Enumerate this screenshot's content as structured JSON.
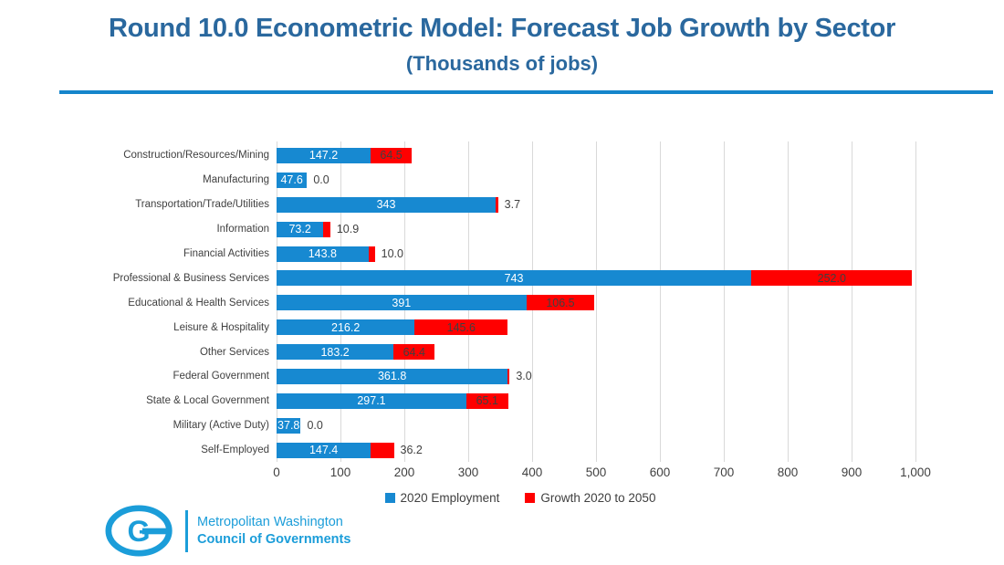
{
  "header": {
    "title": "Round 10.0 Econometric Model: Forecast Job Growth by Sector",
    "subtitle": "(Thousands of jobs)"
  },
  "colors": {
    "title_blue": "#2A689E",
    "divider_blue": "#1585CB",
    "bar_blue": "#1789D1",
    "bar_red": "#FF0000",
    "text_dark": "#404040",
    "gridline_gray": "#D9D9D9",
    "logo_blue": "#1B9DD9"
  },
  "chart_data": {
    "type": "bar",
    "orientation": "horizontal",
    "stacked": true,
    "title": "Round 10.0 Econometric Model: Forecast Job Growth by Sector",
    "subtitle": "(Thousands of jobs)",
    "xlabel": "",
    "ylabel": "",
    "xlim": [
      0,
      1000
    ],
    "x_ticks": [
      "0",
      "100",
      "200",
      "300",
      "400",
      "500",
      "600",
      "700",
      "800",
      "900",
      "1,000"
    ],
    "grid": "vertical",
    "legend_position": "bottom",
    "categories": [
      "Construction/Resources/Mining",
      "Manufacturing",
      "Transportation/Trade/Utilities",
      "Information",
      "Financial Activities",
      "Professional & Business Services",
      "Educational & Health Services",
      "Leisure & Hospitality",
      "Other Services",
      "Federal Government",
      "State & Local Government",
      "Military (Active Duty)",
      "Self-Employed"
    ],
    "series": [
      {
        "name": "2020 Employment",
        "values": [
          147.2,
          47.6,
          343,
          73.2,
          143.8,
          743,
          391,
          216.2,
          183.2,
          361.8,
          297.1,
          37.8,
          147.4
        ]
      },
      {
        "name": "Growth 2020 to 2050",
        "values": [
          64.5,
          0.0,
          3.7,
          10.9,
          10.0,
          252.0,
          106.5,
          145.6,
          64.4,
          3.0,
          65.1,
          0.0,
          36.2
        ]
      }
    ],
    "rows": [
      {
        "label": "Construction/Resources/Mining",
        "employment": 147.2,
        "employment_label": "147.2",
        "growth": 64.5,
        "growth_label": "64.5",
        "growth_label_position": "inside"
      },
      {
        "label": "Manufacturing",
        "employment": 47.6,
        "employment_label": "47.6",
        "growth": 0.0,
        "growth_label": "0.0",
        "growth_label_position": "outside"
      },
      {
        "label": "Transportation/Trade/Utilities",
        "employment": 343,
        "employment_label": "343",
        "growth": 3.7,
        "growth_label": "3.7",
        "growth_label_position": "outside"
      },
      {
        "label": "Information",
        "employment": 73.2,
        "employment_label": "73.2",
        "growth": 10.9,
        "growth_label": "10.9",
        "growth_label_position": "outside"
      },
      {
        "label": "Financial Activities",
        "employment": 143.8,
        "employment_label": "143.8",
        "growth": 10.0,
        "growth_label": "10.0",
        "growth_label_position": "outside"
      },
      {
        "label": "Professional & Business Services",
        "employment": 743,
        "employment_label": "743",
        "growth": 252.0,
        "growth_label": "252.0",
        "growth_label_position": "inside"
      },
      {
        "label": "Educational & Health Services",
        "employment": 391,
        "employment_label": "391",
        "growth": 106.5,
        "growth_label": "106.5",
        "growth_label_position": "inside"
      },
      {
        "label": "Leisure & Hospitality",
        "employment": 216.2,
        "employment_label": "216.2",
        "growth": 145.6,
        "growth_label": "145.6",
        "growth_label_position": "inside"
      },
      {
        "label": "Other Services",
        "employment": 183.2,
        "employment_label": "183.2",
        "growth": 64.4,
        "growth_label": "64.4",
        "growth_label_position": "inside"
      },
      {
        "label": "Federal Government",
        "employment": 361.8,
        "employment_label": "361.8",
        "growth": 3.0,
        "growth_label": "3.0",
        "growth_label_position": "outside"
      },
      {
        "label": "State & Local Government",
        "employment": 297.1,
        "employment_label": "297.1",
        "growth": 65.1,
        "growth_label": "65.1",
        "growth_label_position": "inside"
      },
      {
        "label": "Military (Active Duty)",
        "employment": 37.8,
        "employment_label": "37.8",
        "growth": 0.0,
        "growth_label": "0.0",
        "growth_label_position": "outside"
      },
      {
        "label": "Self-Employed",
        "employment": 147.4,
        "employment_label": "147.4",
        "growth": 36.2,
        "growth_label": "36.2",
        "growth_label_position": "outside"
      }
    ]
  },
  "legend": {
    "items": [
      {
        "label": "2020 Employment",
        "color": "#1789D1"
      },
      {
        "label": "Growth 2020 to 2050",
        "color": "#FF0000"
      }
    ]
  },
  "footer_logo": {
    "emblem_letter": "G",
    "org_line1": "Metropolitan Washington",
    "org_line2": "Council of Governments"
  }
}
